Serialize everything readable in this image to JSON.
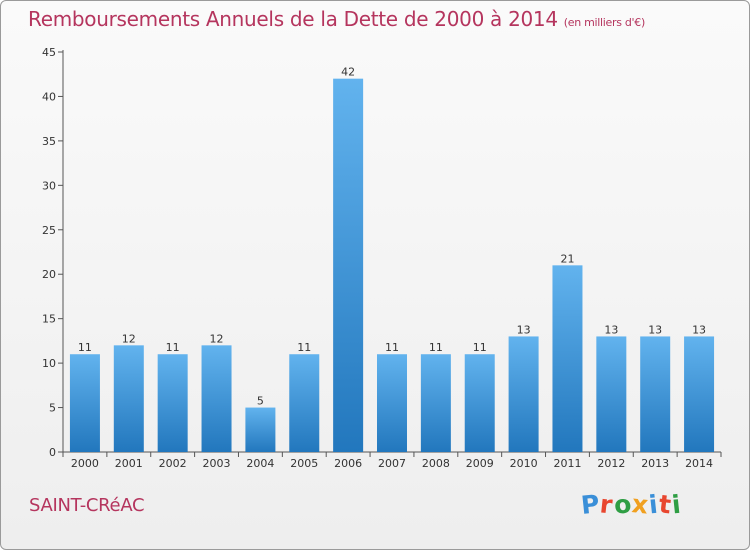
{
  "title": "Remboursements Annuels de la Dette de 2000 à 2014",
  "subtitle": "(en milliers d'€)",
  "location": "SAINT-CRéAC",
  "logo": {
    "text": "Proxiti",
    "letter_colors": [
      "#3a8fd8",
      "#e8462f",
      "#2f9e44",
      "#f0a020",
      "#3a8fd8",
      "#e8462f",
      "#2f9e44"
    ]
  },
  "colors": {
    "bar": "#3f94d8",
    "bar_light": "#62b3ee",
    "bar_dark": "#2277bd",
    "title": "#b5355e"
  },
  "chart_data": {
    "type": "bar",
    "categories": [
      "2000",
      "2001",
      "2002",
      "2003",
      "2004",
      "2005",
      "2006",
      "2007",
      "2008",
      "2009",
      "2010",
      "2011",
      "2012",
      "2013",
      "2014"
    ],
    "values": [
      11,
      12,
      11,
      12,
      5,
      11,
      42,
      11,
      11,
      11,
      13,
      21,
      13,
      13,
      13
    ],
    "title": "Remboursements Annuels de la Dette de 2000 à 2014",
    "xlabel": "",
    "ylabel": "",
    "ylim": [
      0,
      45
    ],
    "yticks": [
      0,
      5,
      10,
      15,
      20,
      25,
      30,
      35,
      40,
      45
    ],
    "grid": false,
    "legend": "none"
  }
}
